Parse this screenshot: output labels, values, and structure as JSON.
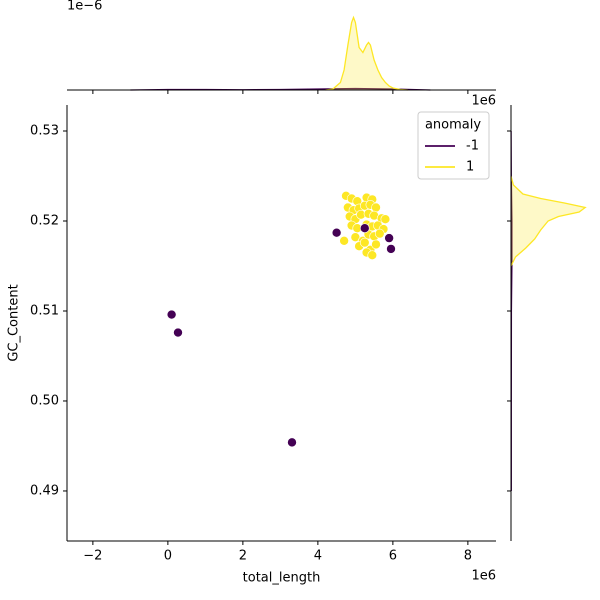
{
  "chart_data": [
    {
      "type": "scatter",
      "x_label": "total_length",
      "y_label": "GC_Content",
      "x_offset_label": "1e6",
      "xlim": [
        -2.69,
        8.75
      ],
      "ylim": [
        0.48444,
        0.53289
      ],
      "xticks": [
        {
          "value": -2,
          "label": "−2"
        },
        0,
        2,
        4,
        6,
        8
      ],
      "yticks": [
        {
          "value": 0.49,
          "label": "0.49"
        },
        {
          "value": 0.5,
          "label": "0.50"
        },
        0.51,
        0.52,
        0.53
      ],
      "legend_title": "anomaly",
      "legend": "upper right",
      "series": [
        {
          "name": "-1",
          "color": "#440154",
          "x": [
            0.1,
            0.27,
            3.31,
            4.5,
            5.95,
            5.9,
            5.25
          ],
          "y": [
            0.5096,
            0.5076,
            0.4954,
            0.5187,
            0.5169,
            0.5181,
            0.5192
          ]
        },
        {
          "name": "1",
          "color": "#fde725",
          "x": [
            4.75,
            4.9,
            5.05,
            5.3,
            5.45,
            4.8,
            4.95,
            5.1,
            5.25,
            5.4,
            5.55,
            4.85,
            5.0,
            5.15,
            5.35,
            5.5,
            5.7,
            5.8,
            4.9,
            5.05,
            5.3,
            5.45,
            5.6,
            5.75,
            4.7,
            5.0,
            5.2,
            5.35,
            5.5,
            5.65,
            5.1,
            5.4,
            5.55,
            5.3,
            5.45,
            5.25
          ],
          "y": [
            0.5228,
            0.5225,
            0.5222,
            0.5226,
            0.5224,
            0.5215,
            0.5212,
            0.5214,
            0.5217,
            0.5218,
            0.5215,
            0.5205,
            0.5202,
            0.5207,
            0.5208,
            0.5206,
            0.5203,
            0.5202,
            0.5195,
            0.5192,
            0.5196,
            0.5194,
            0.5195,
            0.5191,
            0.5178,
            0.5182,
            0.5178,
            0.5185,
            0.5183,
            0.5186,
            0.5172,
            0.5168,
            0.5174,
            0.5165,
            0.5162,
            0.5176
          ]
        }
      ]
    },
    {
      "type": "kde",
      "orientation": "top",
      "density_offset_label": "1e−6",
      "x_offset_label": "1e6",
      "density_lim": [
        0,
        1.8
      ],
      "series": [
        {
          "name": "-1",
          "color": "#440154",
          "x": [
            -1,
            0,
            1,
            2,
            3,
            4,
            5,
            6,
            7
          ],
          "density": [
            0,
            0.01,
            0.01,
            0.005,
            0.01,
            0.02,
            0.03,
            0.02,
            0
          ]
        },
        {
          "name": "1",
          "color": "#fde725",
          "x": [
            4.2,
            4.4,
            4.6,
            4.7,
            4.8,
            4.9,
            4.95,
            5.0,
            5.1,
            5.2,
            5.3,
            5.35,
            5.4,
            5.5,
            5.6,
            5.7,
            5.8,
            5.9,
            6.0,
            6.2,
            6.4
          ],
          "density": [
            0,
            0.02,
            0.15,
            0.4,
            0.9,
            1.35,
            1.45,
            1.35,
            0.85,
            0.75,
            0.9,
            0.95,
            0.9,
            0.6,
            0.4,
            0.25,
            0.15,
            0.08,
            0.04,
            0.01,
            0
          ]
        }
      ]
    },
    {
      "type": "kde",
      "orientation": "right",
      "density_lim": [
        0,
        300
      ],
      "series": [
        {
          "name": "-1",
          "color": "#440154",
          "y": [
            0.49,
            0.5,
            0.51,
            0.515,
            0.52,
            0.525,
            0.53
          ],
          "density": [
            1,
            1,
            1.5,
            3,
            3,
            1,
            0.5
          ]
        },
        {
          "name": "1",
          "color": "#fde725",
          "y": [
            0.515,
            0.516,
            0.517,
            0.518,
            0.519,
            0.52,
            0.5205,
            0.521,
            0.5215,
            0.522,
            0.5225,
            0.523,
            0.524,
            0.525
          ],
          "density": [
            0,
            15,
            50,
            80,
            100,
            125,
            160,
            230,
            250,
            180,
            100,
            40,
            8,
            0
          ]
        }
      ]
    }
  ]
}
